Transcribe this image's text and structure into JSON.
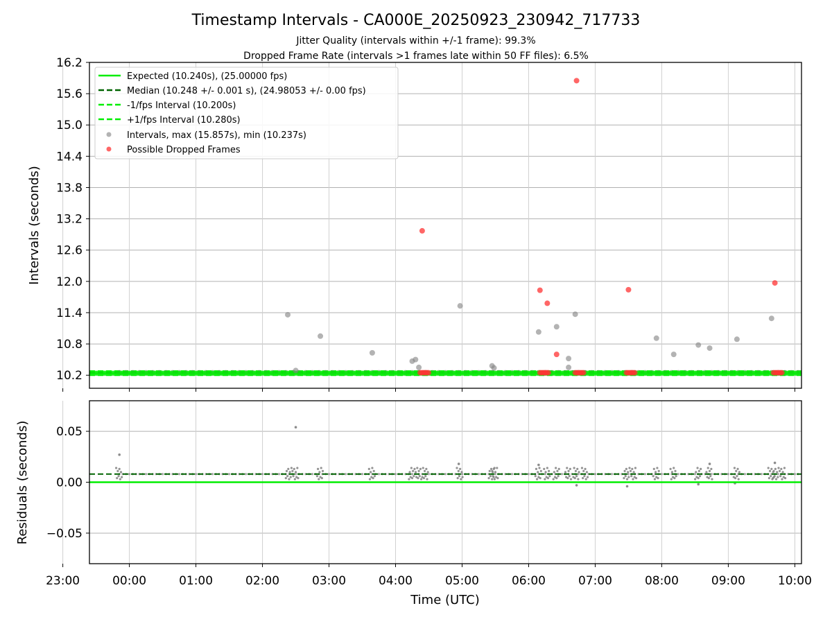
{
  "figure": {
    "title": "Timestamp Intervals - CA000E_20250923_230942_717733",
    "subtitle_1": "Jitter Quality (intervals within +/-1 frame): 99.3%",
    "subtitle_2": "Dropped Frame Rate (intervals >1 frames late within 50 FF files): 6.5%",
    "xlabel": "Time (UTC)"
  },
  "colors": {
    "expected": "#00ee00",
    "median": "#006400",
    "bounds": "#00ee00",
    "intervals": "#808080",
    "dropped": "#ff3333",
    "grid": "#b0b0b0"
  },
  "legend": {
    "expected": "Expected (10.240s), (25.00000 fps)",
    "median": "Median (10.248 +/- 0.001 s), (24.98053 +/- 0.00 fps)",
    "lower": "-1/fps Interval (10.200s)",
    "upper": "+1/fps Interval (10.280s)",
    "intervals": "Intervals, max (15.857s), min (10.237s)",
    "dropped": "Possible Dropped Frames"
  },
  "chart_data": [
    {
      "type": "scatter",
      "ylabel": "Intervals (seconds)",
      "x_unit": "hours since 00:00 UTC (negative = previous day)",
      "xlim": [
        -0.6,
        10.1
      ],
      "ylim": [
        9.95,
        16.2
      ],
      "yticks": [
        "10.2",
        "10.8",
        "11.4",
        "12.0",
        "12.6",
        "13.2",
        "13.8",
        "14.4",
        "15.0",
        "15.6",
        "16.2"
      ],
      "expected": 10.24,
      "median": 10.248,
      "lower": 10.2,
      "upper": 10.28,
      "interval_points": [
        [
          2.38,
          11.36
        ],
        [
          2.5,
          10.29
        ],
        [
          2.87,
          10.95
        ],
        [
          3.65,
          10.63
        ],
        [
          4.25,
          10.47
        ],
        [
          4.3,
          10.5
        ],
        [
          4.35,
          10.35
        ],
        [
          4.97,
          11.53
        ],
        [
          5.45,
          10.38
        ],
        [
          5.48,
          10.34
        ],
        [
          6.15,
          11.03
        ],
        [
          6.42,
          11.13
        ],
        [
          6.6,
          10.52
        ],
        [
          6.6,
          10.35
        ],
        [
          6.7,
          11.37
        ],
        [
          7.92,
          10.91
        ],
        [
          8.18,
          10.6
        ],
        [
          8.55,
          10.78
        ],
        [
          8.72,
          10.72
        ],
        [
          9.13,
          10.89
        ],
        [
          9.65,
          11.29
        ]
      ],
      "dropped_points": [
        [
          4.4,
          12.97
        ],
        [
          6.17,
          11.83
        ],
        [
          6.28,
          11.58
        ],
        [
          6.42,
          10.6
        ],
        [
          6.72,
          15.85
        ],
        [
          7.5,
          11.84
        ],
        [
          9.7,
          11.97
        ]
      ]
    },
    {
      "type": "scatter",
      "ylabel": "Residuals (seconds)",
      "xlim": [
        -0.6,
        10.1
      ],
      "ylim": [
        -0.08,
        0.08
      ],
      "yticks": [
        "−0.05",
        "0.00",
        "0.05"
      ],
      "expected": 0.0,
      "median": 0.008,
      "xticks": [
        "23:00",
        "00:00",
        "01:00",
        "02:00",
        "03:00",
        "04:00",
        "05:00",
        "06:00",
        "07:00",
        "08:00",
        "09:00",
        "10:00"
      ],
      "outlier_points": [
        [
          -0.15,
          0.027
        ],
        [
          2.5,
          0.054
        ],
        [
          4.95,
          0.018
        ],
        [
          6.15,
          0.017
        ],
        [
          6.72,
          -0.003
        ],
        [
          7.48,
          -0.004
        ],
        [
          8.72,
          0.018
        ],
        [
          9.7,
          0.019
        ],
        [
          9.1,
          -0.001
        ],
        [
          8.55,
          -0.002
        ]
      ],
      "cluster_hours": [
        -0.15,
        2.4,
        2.5,
        2.87,
        3.65,
        4.25,
        4.35,
        4.45,
        4.97,
        5.45,
        5.5,
        6.15,
        6.28,
        6.42,
        6.6,
        6.72,
        6.85,
        7.48,
        7.58,
        7.92,
        8.18,
        8.55,
        8.72,
        9.13,
        9.65,
        9.72,
        9.82
      ]
    }
  ]
}
